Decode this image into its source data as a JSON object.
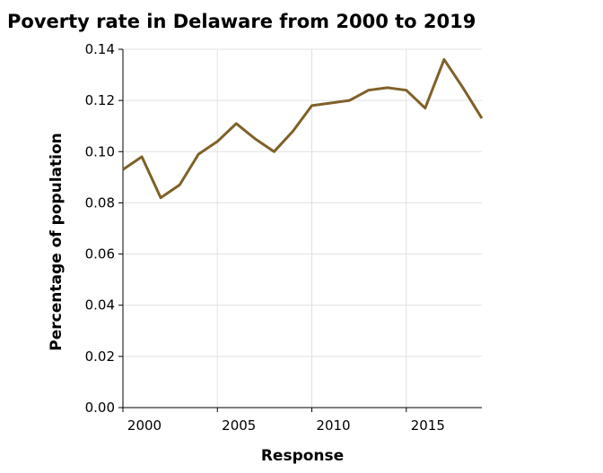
{
  "chart_data": {
    "type": "line",
    "title": "Poverty rate in Delaware from 2000 to 2019",
    "xlabel": "Response",
    "ylabel": "Percentage of population",
    "xlim": [
      2000,
      2019
    ],
    "ylim": [
      0,
      0.14
    ],
    "x_ticks": [
      2000,
      2005,
      2010,
      2015
    ],
    "y_ticks": [
      0.0,
      0.02,
      0.04,
      0.06,
      0.08,
      0.1,
      0.12,
      0.14
    ],
    "y_tick_labels": [
      "0.00",
      "0.02",
      "0.04",
      "0.06",
      "0.08",
      "0.10",
      "0.12",
      "0.14"
    ],
    "grid": true,
    "legend": "none",
    "x": [
      2000,
      2001,
      2002,
      2003,
      2004,
      2005,
      2006,
      2007,
      2008,
      2009,
      2010,
      2011,
      2012,
      2013,
      2014,
      2015,
      2016,
      2017,
      2018,
      2019
    ],
    "series": [
      {
        "color": "#7f6128",
        "values": [
          0.093,
          0.098,
          0.082,
          0.087,
          0.099,
          0.104,
          0.111,
          0.105,
          0.1,
          0.108,
          0.118,
          0.119,
          0.12,
          0.124,
          0.125,
          0.124,
          0.117,
          0.136,
          0.125,
          0.113
        ]
      }
    ]
  }
}
